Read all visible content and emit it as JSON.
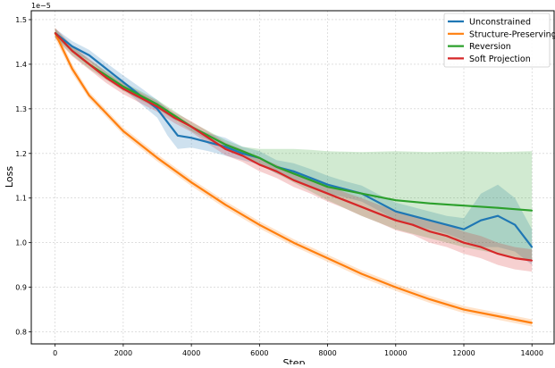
{
  "chart_data": {
    "type": "line",
    "title": "",
    "xlabel": "Step",
    "ylabel": "Loss",
    "y_offset_label": "1e−5",
    "xlim": [
      -700,
      14650
    ],
    "ylim": [
      0.773,
      1.52
    ],
    "x_ticks": [
      0,
      2000,
      4000,
      6000,
      8000,
      10000,
      12000,
      14000
    ],
    "y_ticks": [
      0.8,
      0.9,
      1.0,
      1.1,
      1.2,
      1.3,
      1.4,
      1.5
    ],
    "x_tick_labels": [
      "0",
      "2000",
      "4000",
      "6000",
      "8000",
      "10000",
      "12000",
      "14000"
    ],
    "y_tick_labels": [
      "0.8",
      "0.9",
      "1.0",
      "1.1",
      "1.2",
      "1.3",
      "1.4",
      "1.5"
    ],
    "grid": true,
    "legend_position": "top-right",
    "series": [
      {
        "name": "Unconstrained",
        "color": "#1f77b4",
        "x": [
          0,
          500,
          1000,
          1500,
          2000,
          2500,
          3000,
          3300,
          3600,
          4000,
          4500,
          5000,
          5500,
          6000,
          6500,
          7000,
          7500,
          8000,
          8500,
          9000,
          9500,
          10000,
          10500,
          11000,
          11500,
          12000,
          12500,
          13000,
          13500,
          14000
        ],
        "values": [
          1.47,
          1.44,
          1.42,
          1.39,
          1.36,
          1.33,
          1.3,
          1.27,
          1.24,
          1.235,
          1.225,
          1.215,
          1.2,
          1.19,
          1.17,
          1.16,
          1.145,
          1.13,
          1.12,
          1.11,
          1.09,
          1.07,
          1.06,
          1.05,
          1.04,
          1.03,
          1.05,
          1.06,
          1.04,
          0.99
        ],
        "band": [
          0.01,
          0.012,
          0.012,
          0.013,
          0.015,
          0.018,
          0.02,
          0.03,
          0.03,
          0.022,
          0.02,
          0.02,
          0.015,
          0.015,
          0.015,
          0.018,
          0.02,
          0.02,
          0.018,
          0.018,
          0.018,
          0.02,
          0.02,
          0.02,
          0.02,
          0.025,
          0.06,
          0.07,
          0.06,
          0.04
        ]
      },
      {
        "name": "Structure-Preserving",
        "color": "#ff7f0e",
        "x": [
          0,
          500,
          1000,
          1500,
          2000,
          3000,
          4000,
          5000,
          6000,
          7000,
          8000,
          9000,
          10000,
          11000,
          12000,
          13000,
          14000
        ],
        "values": [
          1.47,
          1.39,
          1.33,
          1.29,
          1.25,
          1.19,
          1.135,
          1.085,
          1.04,
          1.0,
          0.965,
          0.93,
          0.9,
          0.873,
          0.85,
          0.835,
          0.82
        ],
        "band": [
          0.012,
          0.01,
          0.008,
          0.008,
          0.008,
          0.008,
          0.008,
          0.008,
          0.008,
          0.008,
          0.008,
          0.008,
          0.008,
          0.008,
          0.008,
          0.008,
          0.008
        ]
      },
      {
        "name": "Reversion",
        "color": "#2ca02c",
        "x": [
          0,
          500,
          1000,
          1500,
          2000,
          2500,
          3000,
          3500,
          4000,
          4500,
          5000,
          5500,
          6000,
          6500,
          7000,
          7500,
          8000,
          9000,
          10000,
          11000,
          12000,
          13000,
          14000
        ],
        "values": [
          1.47,
          1.43,
          1.4,
          1.375,
          1.35,
          1.33,
          1.31,
          1.285,
          1.26,
          1.24,
          1.22,
          1.205,
          1.19,
          1.17,
          1.155,
          1.14,
          1.125,
          1.11,
          1.095,
          1.088,
          1.083,
          1.078,
          1.072
        ],
        "band_upper": [
          1.48,
          1.44,
          1.41,
          1.385,
          1.36,
          1.34,
          1.32,
          1.295,
          1.27,
          1.25,
          1.23,
          1.215,
          1.21,
          1.21,
          1.21,
          1.208,
          1.205,
          1.203,
          1.205,
          1.203,
          1.205,
          1.203,
          1.205
        ],
        "band_lower": [
          1.46,
          1.42,
          1.39,
          1.365,
          1.34,
          1.32,
          1.3,
          1.275,
          1.25,
          1.23,
          1.21,
          1.195,
          1.175,
          1.155,
          1.135,
          1.115,
          1.095,
          1.06,
          1.03,
          1.01,
          0.99,
          0.975,
          0.96
        ]
      },
      {
        "name": "Soft Projection",
        "color": "#d62728",
        "x": [
          0,
          500,
          1000,
          1500,
          2000,
          2500,
          3000,
          3500,
          4000,
          4500,
          5000,
          5500,
          6000,
          6500,
          7000,
          7500,
          8000,
          8500,
          9000,
          9500,
          10000,
          10500,
          11000,
          11500,
          12000,
          12500,
          13000,
          13500,
          14000
        ],
        "values": [
          1.47,
          1.43,
          1.4,
          1.37,
          1.345,
          1.325,
          1.305,
          1.28,
          1.26,
          1.235,
          1.21,
          1.195,
          1.175,
          1.16,
          1.14,
          1.125,
          1.11,
          1.095,
          1.08,
          1.065,
          1.05,
          1.04,
          1.025,
          1.015,
          1.0,
          0.99,
          0.975,
          0.965,
          0.96
        ],
        "band": [
          0.012,
          0.012,
          0.012,
          0.012,
          0.012,
          0.012,
          0.012,
          0.012,
          0.012,
          0.014,
          0.014,
          0.014,
          0.015,
          0.015,
          0.015,
          0.015,
          0.018,
          0.018,
          0.02,
          0.02,
          0.022,
          0.022,
          0.025,
          0.025,
          0.025,
          0.025,
          0.025,
          0.025,
          0.025
        ]
      }
    ]
  }
}
